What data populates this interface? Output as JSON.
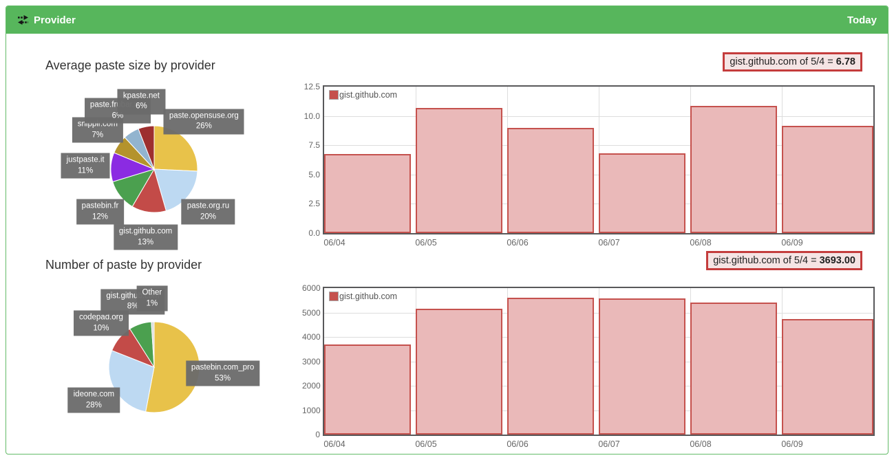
{
  "header": {
    "title": "Provider",
    "right_label": "Today",
    "icon": "exchange-icon"
  },
  "left_column": {
    "pie1_title": "Average paste size by provider",
    "pie2_title": "Number of paste by provider"
  },
  "tooltips": {
    "top": {
      "label": "gist.github.com of 5/4 = ",
      "value": "6.78"
    },
    "bottom": {
      "label": "gist.github.com of 5/4 = ",
      "value": "3693.00"
    }
  },
  "colors": {
    "header_green": "#57b65c",
    "panel_border": "#63bb67",
    "bar_fill": "#eab9b9",
    "bar_border": "#c5514d",
    "tooltip_border": "#c43c3c",
    "tooltip_bg": "#f5e4e4",
    "label_box_bg": "#6a6a6a"
  },
  "chart_data": [
    {
      "type": "pie",
      "title": "Average paste size by provider",
      "slices": [
        {
          "label": "paste.opensuse.org",
          "pct": 26,
          "color": "#e8c24a"
        },
        {
          "label": "paste.org.ru",
          "pct": 20,
          "color": "#bdd9f2"
        },
        {
          "label": "gist.github.com",
          "pct": 13,
          "color": "#c34b48"
        },
        {
          "label": "pastebin.fr",
          "pct": 12,
          "color": "#4ba04f"
        },
        {
          "label": "justpaste.it",
          "pct": 11,
          "color": "#8b2be2"
        },
        {
          "label": "snipplr.com",
          "pct": 7,
          "color": "#b4932c"
        },
        {
          "label": "paste.frubar.net",
          "pct": 6,
          "color": "#92b4cf"
        },
        {
          "label": "kpaste.net",
          "pct": 6,
          "color": "#9d2f2f"
        }
      ]
    },
    {
      "type": "pie",
      "title": "Number of paste by provider",
      "slices": [
        {
          "label": "pastebin.com_pro",
          "pct": 53,
          "color": "#e8c24a"
        },
        {
          "label": "ideone.com",
          "pct": 28,
          "color": "#bdd9f2"
        },
        {
          "label": "codepad.org",
          "pct": 10,
          "color": "#c34b48"
        },
        {
          "label": "gist.github.com",
          "pct": 8,
          "color": "#4ba04f"
        },
        {
          "label": "Other",
          "pct": 1,
          "color": "#dcdcdc"
        }
      ]
    },
    {
      "type": "bar",
      "legend": "gist.github.com",
      "categories": [
        "06/04",
        "06/05",
        "06/06",
        "06/07",
        "06/08",
        "06/09"
      ],
      "values": [
        6.78,
        10.7,
        9.0,
        6.8,
        10.85,
        9.15
      ],
      "ylim": [
        0,
        12.5
      ],
      "yticks": [
        "0.0",
        "2.5",
        "5.0",
        "7.5",
        "10.0",
        "12.5"
      ],
      "grid": true,
      "legend_position": "top-left"
    },
    {
      "type": "bar",
      "legend": "gist.github.com",
      "categories": [
        "06/04",
        "06/05",
        "06/06",
        "06/07",
        "06/08",
        "06/09"
      ],
      "values": [
        3693,
        5150,
        5620,
        5570,
        5420,
        4720
      ],
      "ylim": [
        0,
        6000
      ],
      "yticks": [
        "0",
        "1000",
        "2000",
        "3000",
        "4000",
        "5000",
        "6000"
      ],
      "grid": true,
      "legend_position": "top-left"
    }
  ]
}
